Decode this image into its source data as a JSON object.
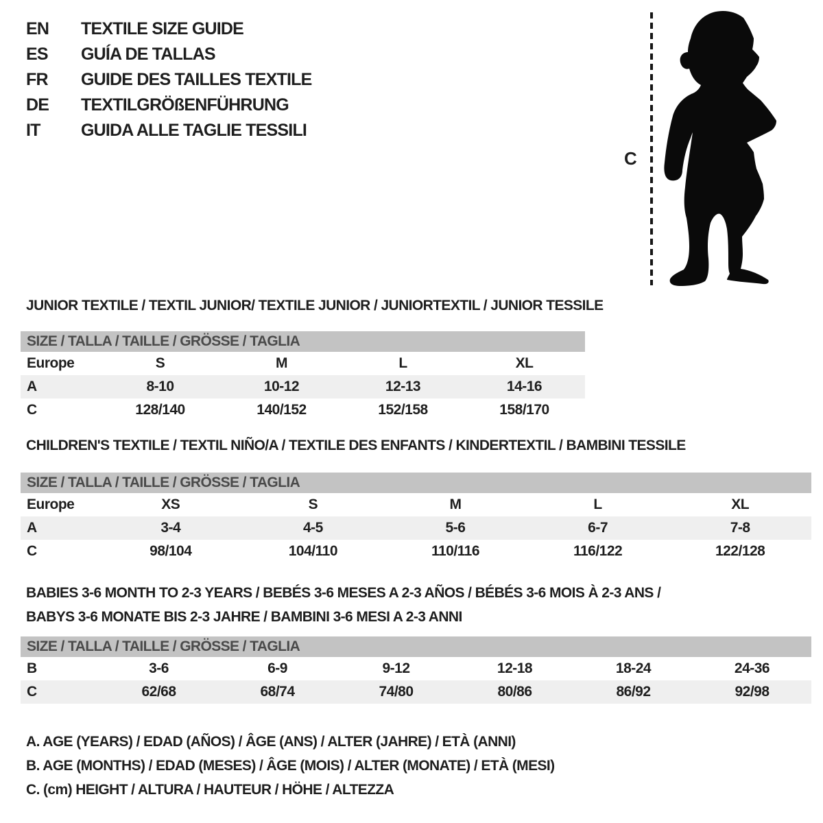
{
  "colors": {
    "text": "#1e1e1e",
    "table_header_bg": "#c3c3c3",
    "table_header_text": "#4a4a4a",
    "row_stripe_bg": "#efefef",
    "background": "#ffffff"
  },
  "languages": [
    {
      "code": "EN",
      "title": "TEXTILE SIZE GUIDE"
    },
    {
      "code": "ES",
      "title": "GUÍA DE TALLAS"
    },
    {
      "code": "FR",
      "title": "GUIDE DES TAILLES TEXTILE"
    },
    {
      "code": "DE",
      "title": "TEXTILGRÖßENFÜHRUNG"
    },
    {
      "code": "IT",
      "title": "GUIDA ALLE TAGLIE TESSILI"
    }
  ],
  "figure": {
    "silhouette": "toddler-silhouette",
    "measure_label": "C"
  },
  "size_header": "SIZE / TALLA / TAILLE / GRÖSSE / TAGLIA",
  "sections": [
    {
      "id": "junior",
      "title_lines": [
        "JUNIOR TEXTILE / TEXTIL JUNIOR/ TEXTILE JUNIOR / JUNIORTEXTIL / JUNIOR TESSILE"
      ],
      "rows": [
        {
          "label": "Europe",
          "stripe": false,
          "cells": [
            "S",
            "M",
            "L",
            "XL"
          ]
        },
        {
          "label": "A",
          "stripe": true,
          "cells": [
            "8-10",
            "10-12",
            "12-13",
            "14-16"
          ]
        },
        {
          "label": "C",
          "stripe": false,
          "cells": [
            "128/140",
            "140/152",
            "152/158",
            "158/170"
          ]
        }
      ]
    },
    {
      "id": "children",
      "title_lines": [
        "CHILDREN'S TEXTILE / TEXTIL NIÑO/A / TEXTILE DES ENFANTS / KINDERTEXTIL / BAMBINI TESSILE"
      ],
      "rows": [
        {
          "label": "Europe",
          "stripe": false,
          "cells": [
            "XS",
            "S",
            "M",
            "L",
            "XL"
          ]
        },
        {
          "label": "A",
          "stripe": true,
          "cells": [
            "3-4",
            "4-5",
            "5-6",
            "6-7",
            "7-8"
          ]
        },
        {
          "label": "C",
          "stripe": false,
          "cells": [
            "98/104",
            "104/110",
            "110/116",
            "116/122",
            "122/128"
          ]
        }
      ]
    },
    {
      "id": "babies",
      "title_lines": [
        "BABIES 3-6 MONTH TO 2-3 YEARS / BEBÉS 3-6 MESES A 2-3 AÑOS / BÉBÉS 3-6 MOIS À 2-3 ANS /",
        "BABYS 3-6 MONATE BIS 2-3 JAHRE / BAMBINI 3-6 MESI A 2-3 ANNI"
      ],
      "rows": [
        {
          "label": "B",
          "stripe": false,
          "cells": [
            "3-6",
            "6-9",
            "9-12",
            "12-18",
            "18-24",
            "24-36"
          ]
        },
        {
          "label": "C",
          "stripe": true,
          "cells": [
            "62/68",
            "68/74",
            "74/80",
            "80/86",
            "86/92",
            "92/98"
          ]
        }
      ]
    }
  ],
  "legend": [
    "A. AGE (YEARS) / EDAD (AÑOS) / ÂGE (ANS) / ALTER (JAHRE) / ETÀ (ANNI)",
    "B. AGE (MONTHS) / EDAD (MESES) / ÂGE (MOIS) / ALTER (MONATE) / ETÀ (MESI)",
    "C. (cm) HEIGHT / ALTURA / HAUTEUR / HÖHE / ALTEZZA"
  ]
}
